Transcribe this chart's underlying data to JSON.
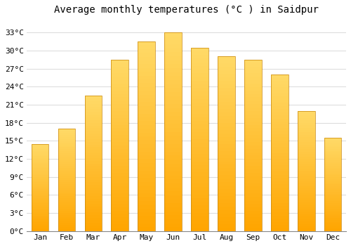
{
  "title": "Average monthly temperatures (°C ) in Saidpur",
  "months": [
    "Jan",
    "Feb",
    "Mar",
    "Apr",
    "May",
    "Jun",
    "Jul",
    "Aug",
    "Sep",
    "Oct",
    "Nov",
    "Dec"
  ],
  "values": [
    14.5,
    17.0,
    22.5,
    28.5,
    31.5,
    33.0,
    30.5,
    29.0,
    28.5,
    26.0,
    20.0,
    15.5
  ],
  "bar_color_bottom": "#FFA500",
  "bar_color_top": "#FFD966",
  "bar_edge_color": "#b8860b",
  "ylim": [
    0,
    35
  ],
  "yticks": [
    0,
    3,
    6,
    9,
    12,
    15,
    18,
    21,
    24,
    27,
    30,
    33
  ],
  "ytick_labels": [
    "0°C",
    "3°C",
    "6°C",
    "9°C",
    "12°C",
    "15°C",
    "18°C",
    "21°C",
    "24°C",
    "27°C",
    "30°C",
    "33°C"
  ],
  "bg_color": "#ffffff",
  "grid_color": "#dddddd",
  "title_fontsize": 10,
  "tick_fontsize": 8
}
